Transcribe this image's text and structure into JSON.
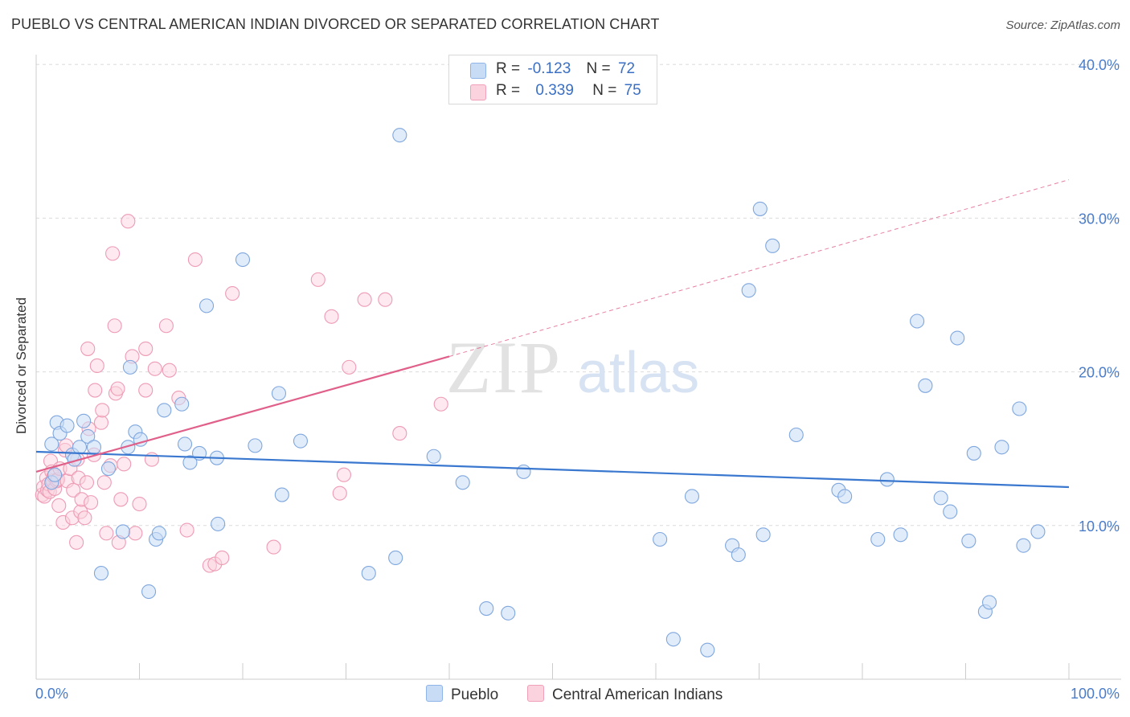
{
  "title": "PUEBLO VS CENTRAL AMERICAN INDIAN DIVORCED OR SEPARATED CORRELATION CHART",
  "source": "Source: ZipAtlas.com",
  "watermark": {
    "zip": "ZIP",
    "atlas": "atlas"
  },
  "legend": {
    "r_label": "R =",
    "n_label": "N =",
    "rows": [
      {
        "name": "Pueblo",
        "r": "-0.123",
        "n": "72",
        "color": "#8fb4e8",
        "fill": "#c9dcf5"
      },
      {
        "name": "Central American Indians",
        "r": "0.339",
        "n": "75",
        "color": "#f0a0b8",
        "fill": "#fbd3df"
      }
    ]
  },
  "chart_data": {
    "type": "scatter",
    "title": "PUEBLO VS CENTRAL AMERICAN INDIAN DIVORCED OR SEPARATED CORRELATION CHART",
    "xlabel": "",
    "ylabel": "Divorced or Separated",
    "xlim": [
      0,
      100
    ],
    "ylim": [
      0,
      40
    ],
    "x_tick_labels": [
      "0.0%",
      "100.0%"
    ],
    "y_tick_labels": [
      "10.0%",
      "20.0%",
      "30.0%",
      "40.0%"
    ],
    "y_ticks": [
      10,
      20,
      30,
      40
    ],
    "grid": true,
    "series": [
      {
        "name": "Pueblo",
        "color": "#3a78d0",
        "points": [
          [
            1.5,
            12.8
          ],
          [
            1.8,
            13.3
          ],
          [
            1.5,
            15.3
          ],
          [
            2.0,
            16.7
          ],
          [
            2.3,
            16.0
          ],
          [
            3.0,
            16.5
          ],
          [
            3.5,
            14.6
          ],
          [
            3.7,
            14.3
          ],
          [
            4.2,
            15.1
          ],
          [
            4.6,
            16.8
          ],
          [
            5.0,
            15.8
          ],
          [
            5.6,
            15.1
          ],
          [
            6.3,
            6.9
          ],
          [
            7.0,
            13.7
          ],
          [
            8.4,
            9.6
          ],
          [
            8.9,
            15.1
          ],
          [
            9.1,
            20.3
          ],
          [
            9.6,
            16.1
          ],
          [
            10.1,
            15.6
          ],
          [
            10.9,
            5.7
          ],
          [
            11.6,
            9.1
          ],
          [
            11.9,
            9.5
          ],
          [
            12.4,
            17.5
          ],
          [
            14.1,
            17.9
          ],
          [
            14.4,
            15.3
          ],
          [
            14.9,
            14.1
          ],
          [
            15.8,
            14.7
          ],
          [
            16.5,
            24.3
          ],
          [
            17.5,
            14.4
          ],
          [
            17.6,
            10.1
          ],
          [
            20.0,
            27.3
          ],
          [
            21.2,
            15.2
          ],
          [
            23.5,
            18.6
          ],
          [
            23.8,
            12.0
          ],
          [
            25.6,
            15.5
          ],
          [
            32.2,
            6.9
          ],
          [
            34.8,
            7.9
          ],
          [
            35.2,
            35.4
          ],
          [
            38.5,
            14.5
          ],
          [
            41.3,
            12.8
          ],
          [
            43.6,
            4.6
          ],
          [
            45.7,
            4.3
          ],
          [
            47.2,
            13.5
          ],
          [
            60.4,
            9.1
          ],
          [
            61.7,
            2.6
          ],
          [
            63.5,
            11.9
          ],
          [
            65.0,
            1.9
          ],
          [
            67.4,
            8.7
          ],
          [
            68.0,
            8.1
          ],
          [
            69.0,
            25.3
          ],
          [
            70.1,
            30.6
          ],
          [
            70.4,
            9.4
          ],
          [
            71.3,
            28.2
          ],
          [
            73.6,
            15.9
          ],
          [
            77.7,
            12.3
          ],
          [
            78.3,
            11.9
          ],
          [
            81.5,
            9.1
          ],
          [
            82.4,
            13.0
          ],
          [
            83.7,
            9.4
          ],
          [
            85.3,
            23.3
          ],
          [
            86.1,
            19.1
          ],
          [
            87.6,
            11.8
          ],
          [
            88.5,
            10.9
          ],
          [
            89.2,
            22.2
          ],
          [
            90.3,
            9.0
          ],
          [
            90.8,
            14.7
          ],
          [
            91.9,
            4.4
          ],
          [
            92.3,
            5.0
          ],
          [
            93.5,
            15.1
          ],
          [
            95.2,
            17.6
          ],
          [
            95.6,
            8.7
          ],
          [
            97.0,
            9.6
          ]
        ]
      },
      {
        "name": "Central American Indians",
        "color": "#e0608a",
        "points": [
          [
            0.6,
            12.0
          ],
          [
            0.7,
            12.5
          ],
          [
            0.8,
            11.9
          ],
          [
            1.0,
            13.1
          ],
          [
            1.1,
            12.3
          ],
          [
            1.2,
            12.7
          ],
          [
            1.3,
            12.2
          ],
          [
            1.4,
            14.2
          ],
          [
            1.5,
            13.5
          ],
          [
            1.6,
            12.9
          ],
          [
            1.7,
            13.2
          ],
          [
            1.8,
            12.4
          ],
          [
            2.0,
            12.9
          ],
          [
            2.1,
            13.0
          ],
          [
            2.2,
            11.3
          ],
          [
            2.3,
            13.7
          ],
          [
            2.6,
            10.2
          ],
          [
            2.8,
            14.9
          ],
          [
            2.9,
            15.2
          ],
          [
            3.0,
            12.9
          ],
          [
            3.3,
            13.7
          ],
          [
            3.5,
            10.5
          ],
          [
            3.6,
            12.3
          ],
          [
            3.9,
            8.9
          ],
          [
            4.0,
            14.3
          ],
          [
            4.1,
            13.1
          ],
          [
            4.3,
            10.9
          ],
          [
            4.4,
            11.7
          ],
          [
            4.7,
            10.5
          ],
          [
            4.9,
            12.8
          ],
          [
            5.0,
            21.5
          ],
          [
            5.1,
            16.3
          ],
          [
            5.3,
            11.5
          ],
          [
            5.6,
            14.6
          ],
          [
            5.7,
            18.8
          ],
          [
            5.9,
            20.4
          ],
          [
            6.3,
            16.7
          ],
          [
            6.4,
            17.5
          ],
          [
            6.6,
            12.8
          ],
          [
            6.8,
            9.5
          ],
          [
            7.2,
            13.9
          ],
          [
            7.4,
            27.7
          ],
          [
            7.6,
            23.0
          ],
          [
            7.7,
            18.6
          ],
          [
            7.9,
            18.9
          ],
          [
            8.0,
            8.9
          ],
          [
            8.2,
            11.7
          ],
          [
            8.5,
            14.0
          ],
          [
            8.9,
            29.8
          ],
          [
            9.3,
            21.0
          ],
          [
            9.6,
            9.5
          ],
          [
            10.0,
            11.4
          ],
          [
            10.6,
            18.8
          ],
          [
            10.6,
            21.5
          ],
          [
            11.2,
            14.3
          ],
          [
            11.5,
            20.2
          ],
          [
            12.6,
            23.0
          ],
          [
            12.9,
            20.1
          ],
          [
            13.8,
            18.3
          ],
          [
            14.6,
            9.7
          ],
          [
            15.4,
            27.3
          ],
          [
            16.8,
            7.4
          ],
          [
            17.3,
            7.5
          ],
          [
            18.0,
            7.9
          ],
          [
            19.0,
            25.1
          ],
          [
            23.0,
            8.6
          ],
          [
            27.3,
            26.0
          ],
          [
            28.6,
            23.6
          ],
          [
            29.4,
            12.1
          ],
          [
            29.8,
            13.3
          ],
          [
            30.3,
            20.3
          ],
          [
            31.8,
            24.7
          ],
          [
            33.8,
            24.7
          ],
          [
            35.2,
            16.0
          ],
          [
            39.2,
            17.9
          ]
        ]
      }
    ],
    "trend_lines": [
      {
        "series": "Pueblo",
        "color": "#3a78d0",
        "x": [
          0,
          100
        ],
        "y": [
          14.8,
          12.5
        ],
        "style": "solid"
      },
      {
        "series": "Central American Indians",
        "color": "#e0608a",
        "x": [
          0,
          40
        ],
        "y": [
          13.5,
          21.0
        ],
        "style": "solid"
      },
      {
        "series": "Central American Indians",
        "color": "#e0608a",
        "x": [
          40,
          100
        ],
        "y": [
          21.0,
          32.5
        ],
        "style": "dashed"
      }
    ]
  }
}
